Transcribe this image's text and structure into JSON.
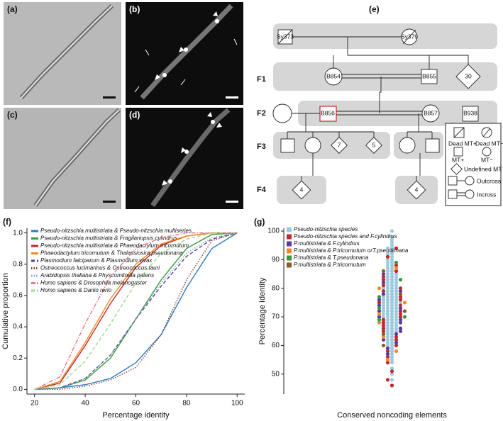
{
  "panel_labels": [
    "(a)",
    "(b)",
    "(c)",
    "(d)",
    "(e)",
    "(f)",
    "(g)"
  ],
  "pedigree": {
    "generations": [
      "F1",
      "F2",
      "F3",
      "F4"
    ],
    "nodes": [
      "Sy373",
      "Sy379",
      "B854",
      "B855",
      "30",
      "B856",
      "B857",
      "B938",
      "7",
      "5",
      "4",
      "4"
    ],
    "legend": [
      "Dead MT+",
      "Dead MT−",
      "MT+",
      "MT−",
      "Undefined MT",
      "Outcross",
      "Incross"
    ]
  },
  "chart_data": [
    {
      "type": "line",
      "xlabel": "Percentage identity",
      "ylabel": "Cumulative proportion",
      "x": [
        20,
        30,
        40,
        50,
        60,
        70,
        80,
        90,
        100
      ],
      "xlim": [
        17,
        103
      ],
      "xticks": [
        20,
        40,
        60,
        80,
        100
      ],
      "ylim": [
        -0.03,
        1.03
      ],
      "yticks": [
        {
          "value": 0,
          "label": "0.0"
        },
        {
          "value": 0.2,
          "label": "0.2"
        },
        {
          "value": 0.4,
          "label": "0.4"
        },
        {
          "value": 0.6,
          "label": "0.6"
        },
        {
          "value": 0.8,
          "label": "0.8"
        },
        {
          "value": 1,
          "label": "1.0"
        }
      ],
      "legend": "top-left",
      "series": [
        {
          "name": "Pseudo-nitzschia multistriata & Pseudo-nitzschia multiseries",
          "color": "#2a7bc4",
          "dash": "solid",
          "values": [
            0,
            0.01,
            0.03,
            0.07,
            0.17,
            0.35,
            0.65,
            0.9,
            1.0
          ]
        },
        {
          "name": "Pseudo-nitzschia multistriata & Fragilariopsis cylindrus",
          "color": "#3a9a3a",
          "dash": "solid",
          "values": [
            0,
            0.01,
            0.06,
            0.2,
            0.45,
            0.7,
            0.9,
            0.99,
            1.0
          ]
        },
        {
          "name": "Pseudo-nitzschia multistriata & Phaeodactylum tricornutum",
          "color": "#c0282d",
          "dash": "solid",
          "values": [
            0,
            0.04,
            0.28,
            0.55,
            0.78,
            0.92,
            0.98,
            1.0,
            1.0
          ]
        },
        {
          "name": "Phaeodactylum tricornutum & Thalassiosira pseudonana",
          "color": "#f08a24",
          "dash": "solid",
          "values": [
            0,
            0.05,
            0.3,
            0.58,
            0.8,
            0.93,
            0.98,
            1.0,
            1.0
          ]
        },
        {
          "name": "Plasmodium falciparum & Plasmodium vivax",
          "color": "#5b3a8c",
          "dash": "dashed",
          "values": [
            0,
            0.01,
            0.07,
            0.22,
            0.45,
            0.66,
            0.85,
            0.96,
            1.0
          ]
        },
        {
          "name": "Ostreococcus lucimarinus & Ostreococcus tauri",
          "color": "#8b3a2a",
          "dash": "dotted",
          "values": [
            0,
            0,
            0.02,
            0.06,
            0.14,
            0.35,
            0.7,
            0.95,
            1.0
          ]
        },
        {
          "name": "Arabidopsis thaliana & Physcomitrella patens",
          "color": "#7fa7d8",
          "dash": "dotted",
          "values": [
            0,
            0.01,
            0.07,
            0.22,
            0.45,
            0.68,
            0.87,
            0.97,
            1.0
          ]
        },
        {
          "name": "Homo sapiens & Drosophila melanogaster",
          "color": "#e87a8a",
          "dash": "dashdot",
          "values": [
            0,
            0.08,
            0.42,
            0.72,
            0.9,
            0.97,
            1.0,
            1.0,
            1.0
          ]
        },
        {
          "name": "Homo sapiens   & Danio rerio",
          "color": "#9ed88a",
          "dash": "dashed",
          "values": [
            0,
            0.03,
            0.18,
            0.42,
            0.68,
            0.87,
            0.96,
            1.0,
            1.0
          ]
        }
      ]
    },
    {
      "type": "beeswarm",
      "xlabel": "Conserved noncoding elements",
      "ylabel": "Percentage Identity",
      "ylim": [
        43,
        101
      ],
      "yticks": [
        50,
        60,
        70,
        80,
        90,
        100
      ],
      "legend": "top-left",
      "series": [
        {
          "name": "Pseudo-nitzschia species",
          "color": "#9ccbe0",
          "values": [
            100,
            98,
            97,
            96,
            95,
            94,
            94,
            93,
            92,
            92,
            91,
            90,
            90,
            89,
            89,
            88,
            88,
            87,
            87,
            86,
            86,
            85,
            85,
            85,
            84,
            84,
            84,
            83,
            83,
            83,
            82,
            82,
            82,
            81,
            81,
            81,
            80,
            80,
            80,
            80,
            79,
            79,
            79,
            78,
            78,
            78,
            77,
            77,
            77,
            77,
            76,
            76,
            76,
            76,
            75,
            75,
            75,
            75,
            75,
            74,
            74,
            74,
            74,
            73,
            73,
            73,
            73,
            72,
            72,
            72,
            72,
            71,
            71,
            71,
            71,
            70,
            70,
            70,
            70,
            69,
            69,
            69,
            68,
            68,
            68,
            67,
            67,
            67,
            66,
            66,
            66,
            65,
            65,
            65,
            64,
            64,
            63,
            63,
            62,
            62,
            61,
            61,
            60,
            60,
            59,
            58,
            57,
            56,
            55,
            54,
            52,
            50,
            48
          ]
        },
        {
          "name": "Pseudo-nitzschia species and F.cylindrus",
          "color": "#c0282d",
          "values": [
            94,
            91,
            88,
            86,
            84,
            83,
            81,
            80,
            79,
            77,
            76,
            75,
            74,
            72,
            71,
            70,
            69,
            68,
            67,
            66,
            65,
            63,
            62,
            60,
            58,
            56,
            54,
            51,
            48,
            46
          ]
        },
        {
          "name": "P.multistriata & F.cylindrus",
          "color": "#5b3a9c",
          "values": [
            85,
            82,
            79,
            78,
            76,
            74,
            73,
            72,
            70,
            69,
            68,
            66,
            65,
            64,
            62,
            61,
            59,
            57
          ]
        },
        {
          "name": "P.multistriata & P.tricornutum orT.pseudonana",
          "color": "#f08a24",
          "values": [
            87,
            80,
            75,
            71,
            68,
            63,
            58,
            55
          ]
        },
        {
          "name": "P.multistriata & T.pseudonana",
          "color": "#3a9a3a",
          "values": [
            89,
            83,
            77,
            73,
            69,
            70
          ]
        },
        {
          "name": "P.multistriata & P.tricornutum",
          "color": "#8b5a2a",
          "values": [
            86,
            78,
            72,
            64,
            60
          ]
        }
      ]
    }
  ]
}
